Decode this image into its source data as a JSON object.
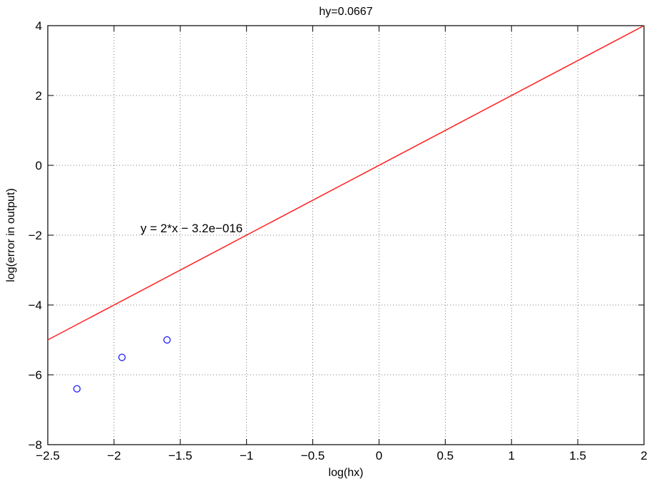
{
  "chart_data": {
    "type": "scatter",
    "title": "hy=0.0667",
    "xlabel": "log(hx)",
    "ylabel": "log(error in output)",
    "xlim": [
      -2.5,
      2
    ],
    "ylim": [
      -8,
      4
    ],
    "xticks": [
      -2.5,
      -2,
      -1.5,
      -1,
      -0.5,
      0,
      0.5,
      1,
      1.5,
      2
    ],
    "xtick_labels": [
      "−2.5",
      "−2",
      "−1.5",
      "−1",
      "−0.5",
      "0",
      "0.5",
      "1",
      "1.5",
      "2"
    ],
    "yticks": [
      -8,
      -6,
      -4,
      -2,
      0,
      2,
      4
    ],
    "ytick_labels": [
      "−8",
      "−6",
      "−4",
      "−2",
      "0",
      "2",
      "4"
    ],
    "grid": true,
    "series": [
      {
        "kind": "points",
        "marker": "circle",
        "color": "#1a1aff",
        "x": [
          -2.28,
          -1.94,
          -1.6
        ],
        "y": [
          -6.4,
          -5.5,
          -5.0
        ]
      },
      {
        "kind": "line",
        "color": "#ff2020",
        "x": [
          -2.5,
          2
        ],
        "y": [
          -5,
          4
        ]
      }
    ],
    "annotation": {
      "text": "y = 2*x − 3.2e−016",
      "x": -1.8,
      "y": -1.8
    }
  }
}
